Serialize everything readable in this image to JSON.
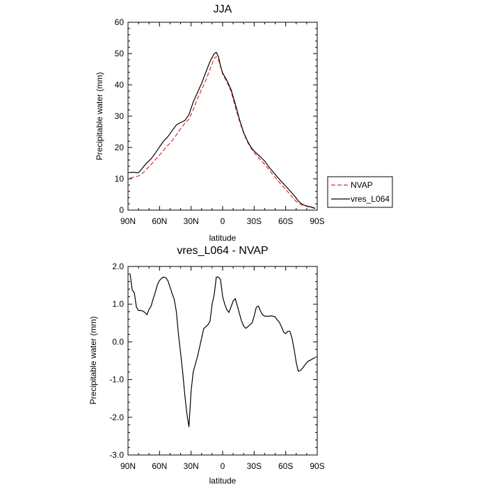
{
  "chart_data": [
    {
      "type": "line",
      "title": "JJA",
      "xlabel": "latitude",
      "ylabel": "Precipitable water (mm)",
      "xlim": [
        90,
        -90
      ],
      "ylim": [
        0,
        60
      ],
      "x_tick_values": [
        90,
        60,
        30,
        0,
        -30,
        -60,
        -90
      ],
      "x_tick_labels": [
        "90N",
        "60N",
        "30N",
        "0",
        "30S",
        "60S",
        "90S"
      ],
      "y_tick_values": [
        0,
        10,
        20,
        30,
        40,
        50,
        60
      ],
      "y_tick_labels": [
        "0",
        "10",
        "20",
        "30",
        "40",
        "50",
        "60"
      ],
      "legend_position": "right",
      "series": [
        {
          "name": "NVAP",
          "color": "#e8262a",
          "dash": "dashed",
          "x": [
            88,
            84,
            80,
            76,
            72,
            68,
            64,
            60,
            56,
            52,
            48,
            44,
            40,
            36,
            32,
            28,
            24,
            20,
            16,
            12,
            8,
            6,
            4,
            2,
            0,
            -4,
            -8,
            -12,
            -16,
            -20,
            -24,
            -28,
            -32,
            -36,
            -40,
            -44,
            -48,
            -52,
            -56,
            -60,
            -64,
            -68,
            -72,
            -76,
            -80,
            -84,
            -88
          ],
          "y": [
            10.2,
            10.6,
            10.9,
            11.8,
            13.2,
            14.6,
            16.1,
            17.6,
            19.2,
            20.7,
            22.2,
            24.0,
            26.0,
            27.7,
            29.0,
            32.0,
            35.5,
            38.5,
            41.5,
            45.0,
            48.5,
            49.0,
            48.0,
            46.0,
            43.5,
            41.0,
            38.0,
            33.0,
            28.5,
            24.6,
            21.5,
            19.3,
            17.5,
            16.1,
            14.6,
            13.0,
            11.2,
            9.6,
            8.1,
            6.6,
            5.1,
            3.4,
            2.2,
            1.6,
            1.2,
            0.9,
            0.5
          ]
        },
        {
          "name": "vres_L064",
          "color": "#000000",
          "dash": "solid",
          "x": [
            88,
            86,
            84,
            82,
            80,
            78,
            76,
            72,
            68,
            64,
            60,
            56,
            52,
            48,
            44,
            40,
            36,
            32,
            28,
            24,
            20,
            16,
            12,
            8,
            6,
            4,
            2,
            0,
            -4,
            -8,
            -12,
            -16,
            -20,
            -24,
            -28,
            -32,
            -36,
            -40,
            -44,
            -48,
            -52,
            -56,
            -60,
            -64,
            -68,
            -72,
            -76,
            -80,
            -84,
            -88
          ],
          "y": [
            12.0,
            12.1,
            12.1,
            11.9,
            12.0,
            12.7,
            13.6,
            15.1,
            16.4,
            18.2,
            20.2,
            22.1,
            23.5,
            25.4,
            27.2,
            28.0,
            28.6,
            30.5,
            34.5,
            37.5,
            40.5,
            44.0,
            47.5,
            50.0,
            50.4,
            49.0,
            46.0,
            43.8,
            41.5,
            38.5,
            34.0,
            29.0,
            24.8,
            21.8,
            19.6,
            18.2,
            17.0,
            15.7,
            13.8,
            12.2,
            10.6,
            9.1,
            7.7,
            6.2,
            4.7,
            2.9,
            1.8,
            1.3,
            1.0,
            0.6
          ]
        }
      ]
    },
    {
      "type": "line",
      "title": "vres_L064 - NVAP",
      "xlabel": "latitude",
      "ylabel": "Precipitable water (mm)",
      "xlim": [
        90,
        -90
      ],
      "ylim": [
        -3.0,
        2.0
      ],
      "x_tick_values": [
        90,
        60,
        30,
        0,
        -30,
        -60,
        -90
      ],
      "x_tick_labels": [
        "90N",
        "60N",
        "30N",
        "0",
        "30S",
        "60S",
        "90S"
      ],
      "y_tick_values": [
        2.0,
        1.0,
        0.0,
        -1.0,
        -2.0,
        -3.0
      ],
      "y_tick_labels": [
        "2.0",
        "1.0",
        "0.0",
        "-1.0",
        "-2.0",
        "-3.0"
      ],
      "series": [
        {
          "name": "vres_L064 - NVAP",
          "color": "#000000",
          "dash": "solid",
          "x": [
            88,
            86,
            84,
            82,
            80,
            78,
            76,
            74,
            72,
            70,
            68,
            66,
            64,
            62,
            60,
            58,
            56,
            54,
            52,
            50,
            48,
            46,
            44,
            42,
            40,
            38,
            36,
            34,
            32,
            30,
            28,
            26,
            24,
            22,
            20,
            18,
            16,
            14,
            12,
            10,
            8,
            6,
            4,
            2,
            0,
            -2,
            -4,
            -6,
            -8,
            -10,
            -12,
            -14,
            -16,
            -18,
            -20,
            -22,
            -24,
            -26,
            -28,
            -30,
            -32,
            -34,
            -36,
            -38,
            -40,
            -42,
            -44,
            -46,
            -48,
            -50,
            -52,
            -54,
            -56,
            -58,
            -60,
            -62,
            -64,
            -66,
            -68,
            -70,
            -72,
            -74,
            -76,
            -78,
            -80,
            -82,
            -84,
            -86,
            -88
          ],
          "y": [
            1.8,
            1.38,
            1.3,
            0.92,
            0.83,
            0.83,
            0.82,
            0.78,
            0.72,
            0.86,
            0.95,
            1.15,
            1.32,
            1.52,
            1.63,
            1.69,
            1.72,
            1.7,
            1.62,
            1.45,
            1.28,
            1.12,
            0.8,
            0.2,
            -0.3,
            -0.8,
            -1.4,
            -1.9,
            -2.25,
            -1.3,
            -0.8,
            -0.6,
            -0.4,
            -0.15,
            0.1,
            0.35,
            0.4,
            0.45,
            0.55,
            1.0,
            1.25,
            1.72,
            1.72,
            1.65,
            1.2,
            1.0,
            0.85,
            0.78,
            0.93,
            1.08,
            1.15,
            0.95,
            0.75,
            0.55,
            0.42,
            0.36,
            0.4,
            0.46,
            0.5,
            0.68,
            0.92,
            0.95,
            0.82,
            0.72,
            0.68,
            0.68,
            0.68,
            0.69,
            0.68,
            0.66,
            0.58,
            0.52,
            0.4,
            0.26,
            0.22,
            0.28,
            0.28,
            0.1,
            -0.2,
            -0.55,
            -0.78,
            -0.76,
            -0.7,
            -0.62,
            -0.55,
            -0.5,
            -0.48,
            -0.44,
            -0.42
          ]
        }
      ]
    }
  ]
}
